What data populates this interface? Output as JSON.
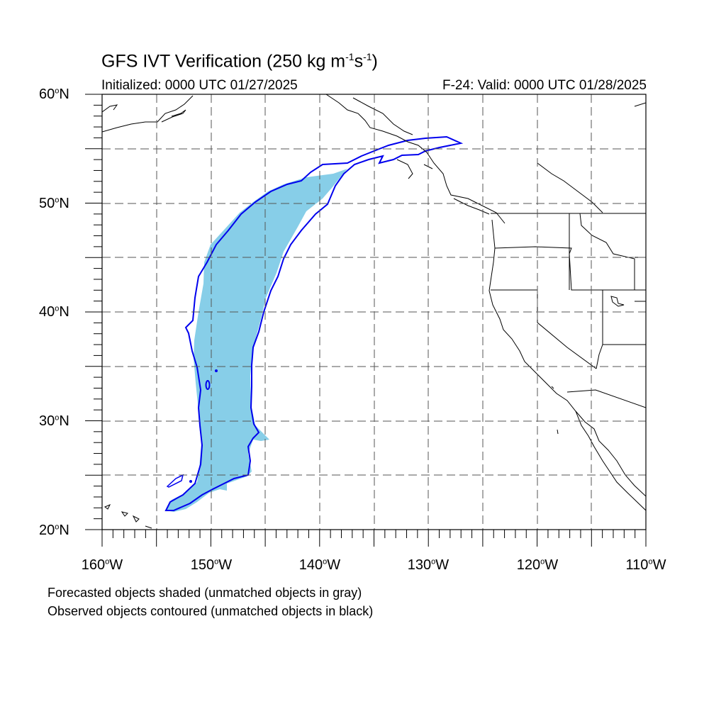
{
  "title": {
    "main_text": "GFS IVT Verification (250 kg m",
    "exp1": "-1",
    "mid_text": "s",
    "exp2": "-1",
    "close_text": ")"
  },
  "subtitle": {
    "initialized": "Initialized: 0000 UTC 01/27/2025",
    "valid": "F-24: Valid: 0000 UTC 01/28/2025"
  },
  "map": {
    "lon_range": [
      -160,
      -110
    ],
    "lat_range": [
      20,
      60
    ],
    "grid_lines": "dashed every 5 degrees",
    "forecast_shade_color": "#87CEE8",
    "observed_contour_color": "#0000EE",
    "coastline_color": "#000000",
    "lat_labels": [
      {
        "num": "60",
        "deg": "o",
        "hemi": "N"
      },
      {
        "num": "50",
        "deg": "o",
        "hemi": "N"
      },
      {
        "num": "40",
        "deg": "o",
        "hemi": "N"
      },
      {
        "num": "30",
        "deg": "o",
        "hemi": "N"
      },
      {
        "num": "20",
        "deg": "o",
        "hemi": "N"
      }
    ],
    "lon_labels": [
      {
        "num": "160",
        "deg": "o",
        "hemi": "W"
      },
      {
        "num": "150",
        "deg": "o",
        "hemi": "W"
      },
      {
        "num": "140",
        "deg": "o",
        "hemi": "W"
      },
      {
        "num": "130",
        "deg": "o",
        "hemi": "W"
      },
      {
        "num": "120",
        "deg": "o",
        "hemi": "W"
      },
      {
        "num": "110",
        "deg": "o",
        "hemi": "W"
      }
    ]
  },
  "notes": {
    "forecast": "Forecasted objects shaded (unmatched objects in gray)",
    "observed": "Observed objects contoured (unmatched objects in black)"
  }
}
